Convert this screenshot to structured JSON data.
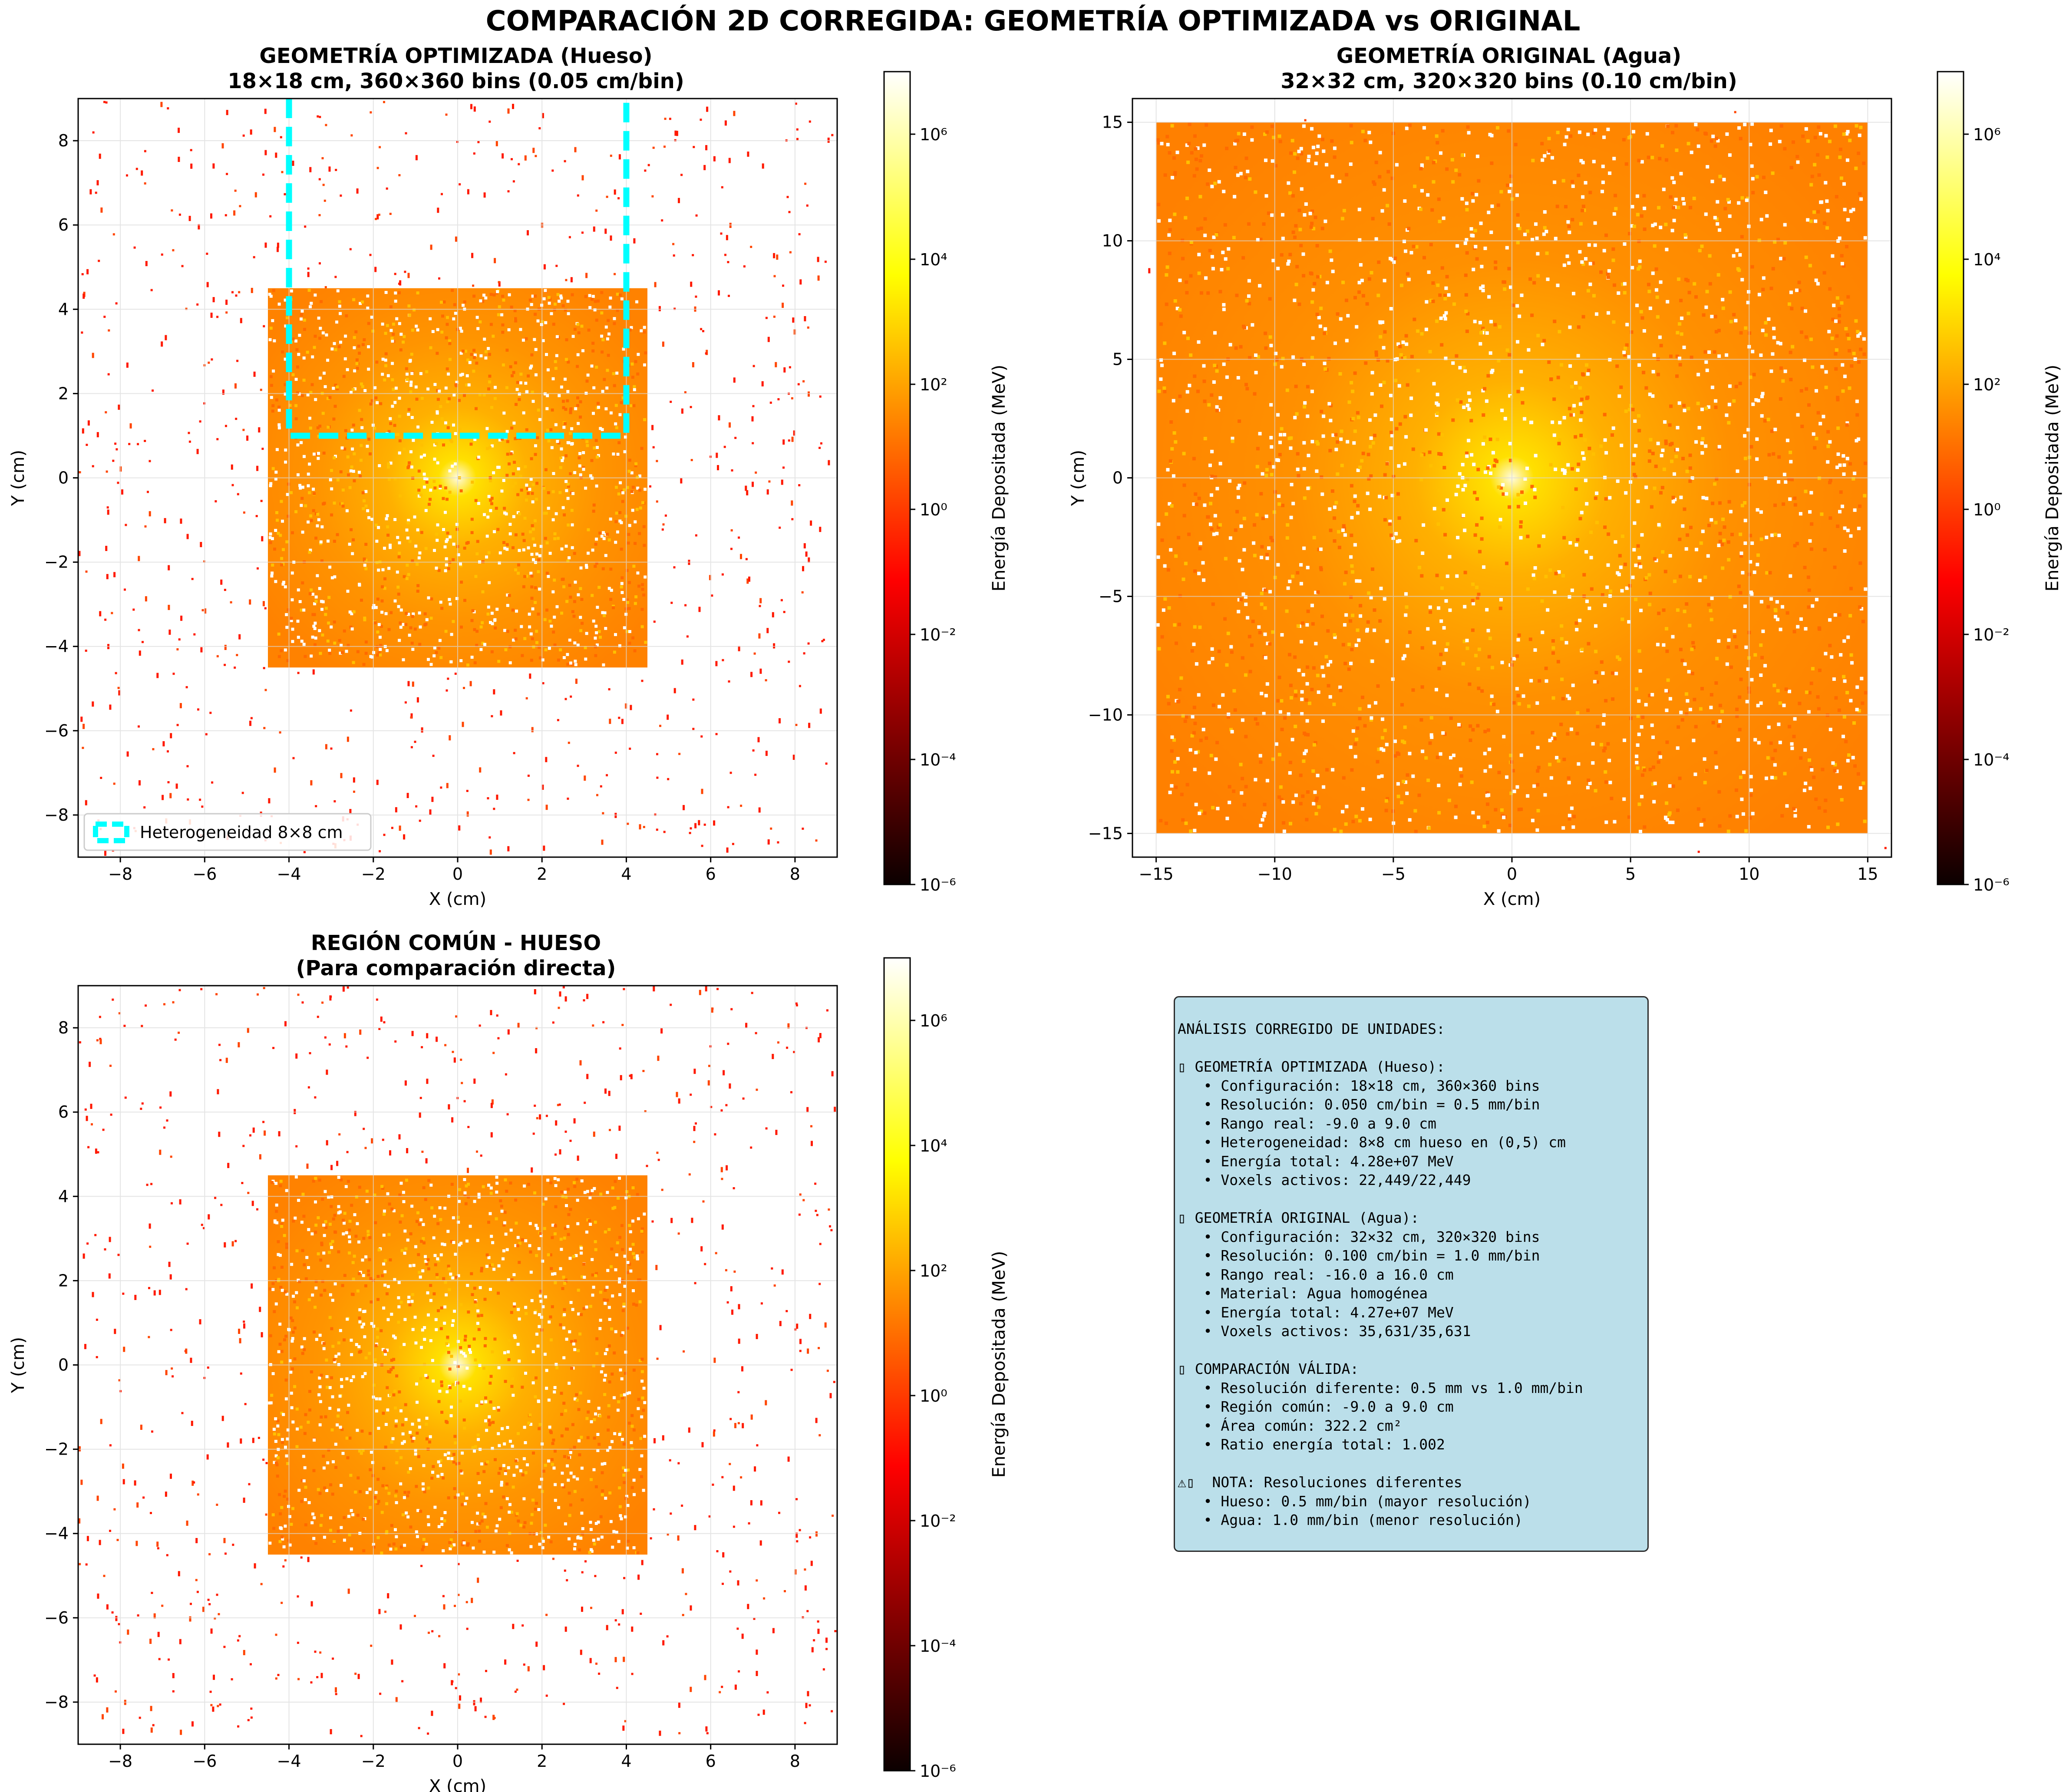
{
  "figure": {
    "title": "COMPARACIÓN 2D CORREGIDA: GEOMETRÍA OPTIMIZADA vs ORIGINAL"
  },
  "colors": {
    "frame": "#000000",
    "grid": "#d9d9d9",
    "heterogeneity_box": "#00ffff",
    "note_bg": "#add8e6"
  },
  "chart_data": [
    {
      "id": "bone",
      "type": "heatmap",
      "title_line1": "GEOMETRÍA OPTIMIZADA (Hueso)",
      "title_line2": "18×18 cm, 360×360 bins (0.05 cm/bin)",
      "xlabel": "X (cm)",
      "ylabel": "Y (cm)",
      "xlim": [
        -9,
        9
      ],
      "ylim": [
        -9,
        9
      ],
      "xticks": [
        -8,
        -6,
        -4,
        -2,
        0,
        2,
        4,
        6,
        8
      ],
      "yticks": [
        -8,
        -6,
        -4,
        -2,
        0,
        2,
        4,
        6,
        8
      ],
      "tick_labels": [
        "−8",
        "−6",
        "−4",
        "−2",
        "0",
        "2",
        "4",
        "6",
        "8"
      ],
      "grid": true,
      "colormap": "hot",
      "dose_region": [
        -4.5,
        4.5,
        -4.5,
        4.5
      ],
      "heterogeneity_box": [
        -4,
        4,
        1,
        9
      ],
      "legend": {
        "position": "lower-left",
        "label": "Heterogeneidad 8×8 cm"
      },
      "colorbar": {
        "label": "Energía Depositada (MeV)",
        "scale": "log",
        "range": [
          1e-06,
          10000000.0
        ],
        "tick_labels": [
          "10⁻⁶",
          "10⁻⁴",
          "10⁻²",
          "10⁰",
          "10²",
          "10⁴",
          "10⁶"
        ]
      }
    },
    {
      "id": "water",
      "type": "heatmap",
      "title_line1": "GEOMETRÍA ORIGINAL (Agua)",
      "title_line2": "32×32 cm, 320×320 bins (0.10 cm/bin)",
      "xlabel": "X (cm)",
      "ylabel": "Y (cm)",
      "xlim": [
        -16,
        16
      ],
      "ylim": [
        -16,
        16
      ],
      "xticks": [
        -15,
        -10,
        -5,
        0,
        5,
        10,
        15
      ],
      "yticks": [
        -15,
        -10,
        -5,
        0,
        5,
        10,
        15
      ],
      "tick_labels": [
        "−15",
        "−10",
        "−5",
        "0",
        "5",
        "10",
        "15"
      ],
      "grid": true,
      "colormap": "hot",
      "dose_region": [
        -15,
        15,
        -15,
        15
      ],
      "colorbar": {
        "label": "Energía Depositada (MeV)",
        "scale": "log",
        "range": [
          1e-06,
          10000000.0
        ],
        "tick_labels": [
          "10⁻⁶",
          "10⁻⁴",
          "10⁻²",
          "10⁰",
          "10²",
          "10⁴",
          "10⁶"
        ]
      }
    },
    {
      "id": "common",
      "type": "heatmap",
      "title_line1": "REGIÓN COMÚN - HUESO",
      "title_line2": "(Para comparación directa)",
      "xlabel": "X (cm)",
      "ylabel": "Y (cm)",
      "xlim": [
        -9,
        9
      ],
      "ylim": [
        -9,
        9
      ],
      "xticks": [
        -8,
        -6,
        -4,
        -2,
        0,
        2,
        4,
        6,
        8
      ],
      "yticks": [
        -8,
        -6,
        -4,
        -2,
        0,
        2,
        4,
        6,
        8
      ],
      "tick_labels": [
        "−8",
        "−6",
        "−4",
        "−2",
        "0",
        "2",
        "4",
        "6",
        "8"
      ],
      "grid": true,
      "colormap": "hot",
      "dose_region": [
        -4.5,
        4.5,
        -4.5,
        4.5
      ],
      "colorbar": {
        "label": "Energía Depositada (MeV)",
        "scale": "log",
        "range": [
          1e-06,
          10000000.0
        ],
        "tick_labels": [
          "10⁻⁶",
          "10⁻⁴",
          "10⁻²",
          "10⁰",
          "10²",
          "10⁴",
          "10⁶"
        ]
      }
    }
  ],
  "notes": {
    "lines": [
      "ANÁLISIS CORREGIDO DE UNIDADES:",
      "",
      "▯ GEOMETRÍA OPTIMIZADA (Hueso):",
      "   • Configuración: 18×18 cm, 360×360 bins",
      "   • Resolución: 0.050 cm/bin = 0.5 mm/bin",
      "   • Rango real: -9.0 a 9.0 cm",
      "   • Heterogeneidad: 8×8 cm hueso en (0,5) cm",
      "   • Energía total: 4.28e+07 MeV",
      "   • Voxels activos: 22,449/22,449",
      "",
      "▯ GEOMETRÍA ORIGINAL (Agua):",
      "   • Configuración: 32×32 cm, 320×320 bins",
      "   • Resolución: 0.100 cm/bin = 1.0 mm/bin",
      "   • Rango real: -16.0 a 16.0 cm",
      "   • Material: Agua homogénea",
      "   • Energía total: 4.27e+07 MeV",
      "   • Voxels activos: 35,631/35,631",
      "",
      "▯ COMPARACIÓN VÁLIDA:",
      "   • Resolución diferente: 0.5 mm vs 1.0 mm/bin",
      "   • Región común: -9.0 a 9.0 cm",
      "   • Área común: 322.2 cm²",
      "   • Ratio energía total: 1.002",
      "",
      "⚠▯  NOTA: Resoluciones diferentes",
      "   • Hueso: 0.5 mm/bin (mayor resolución)",
      "   • Agua: 1.0 mm/bin (menor resolución)"
    ]
  }
}
